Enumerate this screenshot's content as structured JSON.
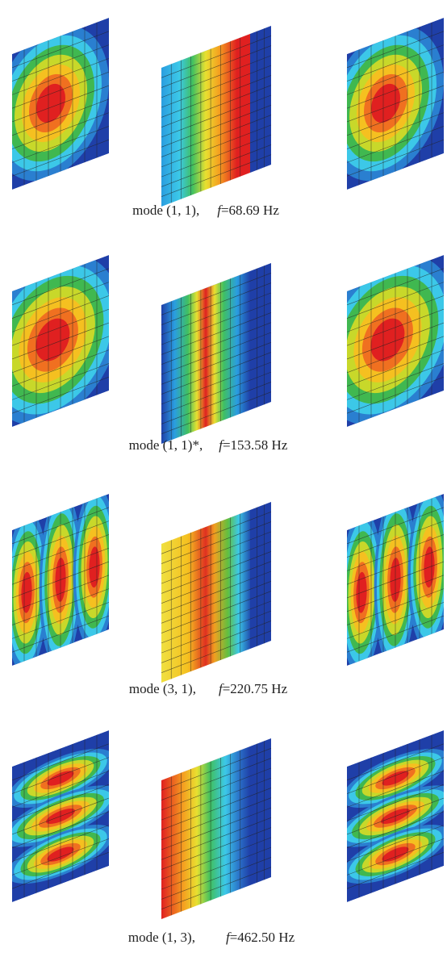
{
  "figure": {
    "captions": [
      {
        "mode": "mode (1, 1),",
        "symbol": "f",
        "frequency": "=68.69 Hz"
      },
      {
        "mode": "mode (1, 1)*,",
        "symbol": "f",
        "frequency": "=153.58 Hz"
      },
      {
        "mode": "mode (3, 1),",
        "symbol": "f",
        "frequency": "=220.75 Hz"
      },
      {
        "mode": "mode (1, 3),",
        "symbol": "f",
        "frequency": "=462.50 Hz"
      }
    ]
  }
}
